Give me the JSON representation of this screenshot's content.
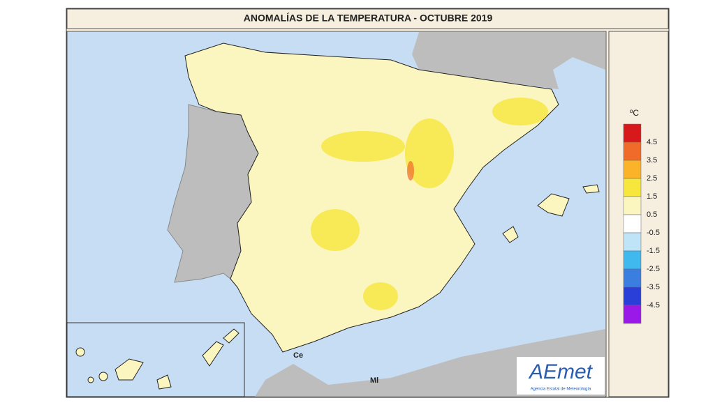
{
  "header": {
    "title": "ANOMALÍAS DE LA TEMPERATURA - OCTUBRE 2019"
  },
  "legend": {
    "unit": "ºC",
    "labels": [
      "4.5",
      "3.5",
      "2.5",
      "1.5",
      "0.5",
      "-0.5",
      "-1.5",
      "-2.5",
      "-3.5",
      "-4.5"
    ],
    "colors": [
      "#d7191c",
      "#f06a2a",
      "#fbb42a",
      "#f7e63c",
      "#fbf6c0",
      "#ffffff",
      "#bfe3f7",
      "#3fb9ee",
      "#3a7fe0",
      "#2a3fd8",
      "#9b19e8"
    ]
  },
  "map_labels": [
    "Ce",
    "Ml"
  ],
  "logo": {
    "name": "AEmet",
    "subtitle": "Agencia Estatal de Meteorología"
  }
}
